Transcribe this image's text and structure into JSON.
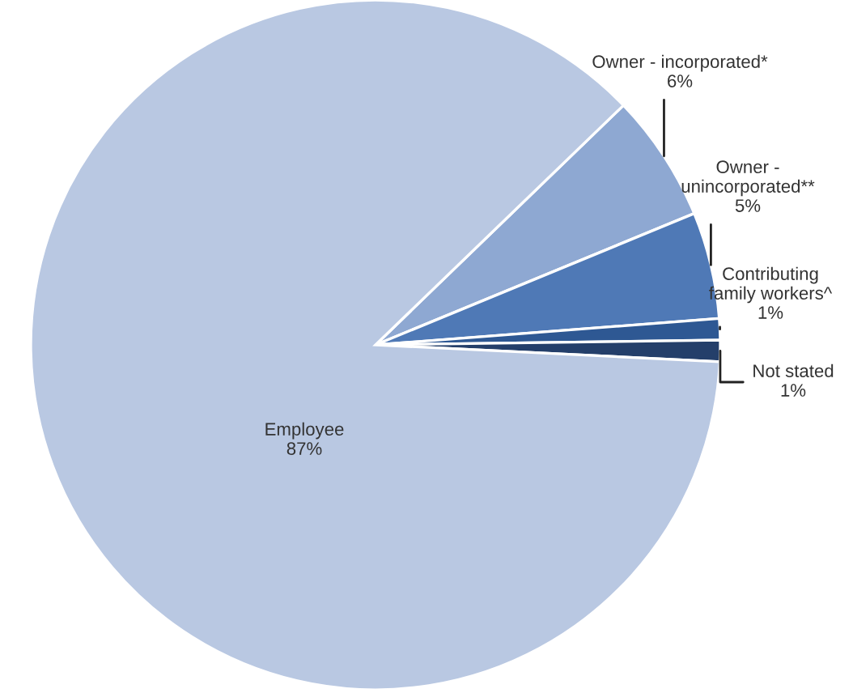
{
  "chart_data": {
    "type": "pie",
    "categories": [
      "Owner - incorporated*",
      "Owner - unincorporated**",
      "Contributing family workers^",
      "Not stated",
      "Employee"
    ],
    "values": [
      6,
      5,
      1,
      1,
      87
    ],
    "value_labels": [
      "6%",
      "5%",
      "1%",
      "1%",
      "87%"
    ],
    "colors": [
      "#8ea8d2",
      "#4f79b6",
      "#2e5893",
      "#243f6a",
      "#b9c8e2"
    ]
  }
}
